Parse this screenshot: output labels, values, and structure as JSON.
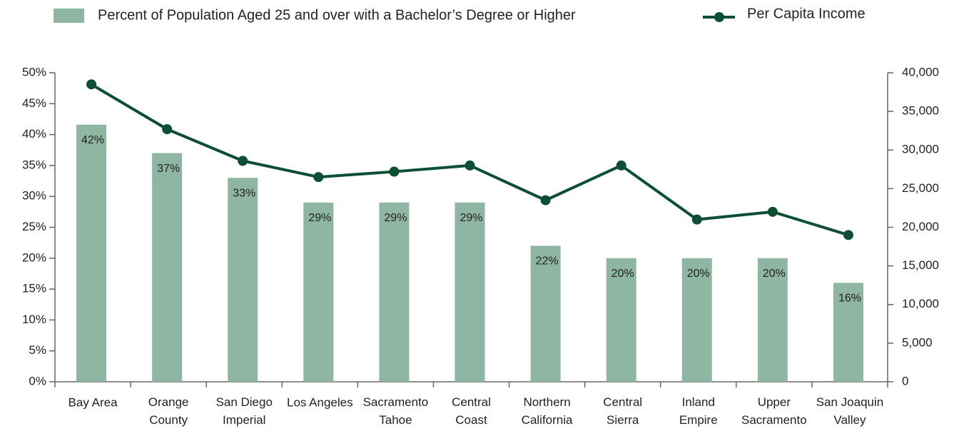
{
  "chart_data": {
    "type": "bar_line",
    "categories": [
      "Bay Area",
      "Orange\nCounty",
      "San Diego\nImperial",
      "Los Angeles",
      "Sacramento\nTahoe",
      "Central\nCoast",
      "Northern\nCalifornia",
      "Central\nSierra",
      "Inland\nEmpire",
      "Upper\nSacramento",
      "San Joaquin\nValley"
    ],
    "series": [
      {
        "name": "Percent of Population Aged 25 and over with a Bachelor’s Degree or Higher",
        "type": "bar",
        "color": "#8fb5a3",
        "values": [
          41.6,
          37,
          33,
          29,
          29,
          29,
          22,
          20,
          20,
          20,
          16
        ],
        "value_labels": [
          "42%",
          "37%",
          "33%",
          "29%",
          "29%",
          "29%",
          "22%",
          "20%",
          "20%",
          "20%",
          "16%"
        ]
      },
      {
        "name": "Per Capita Income",
        "type": "line",
        "axis": "y2",
        "color": "#0d4f35",
        "values": [
          38500,
          32700,
          28600,
          26500,
          27200,
          28000,
          23500,
          28000,
          21000,
          22000,
          19000
        ]
      }
    ],
    "ylim": [
      0,
      50
    ],
    "yticks": [
      {
        "value": 0,
        "label": "0%"
      },
      {
        "value": 5,
        "label": "5%"
      },
      {
        "value": 10,
        "label": "10%"
      },
      {
        "value": 15,
        "label": "15%"
      },
      {
        "value": 20,
        "label": "20%"
      },
      {
        "value": 25,
        "label": "25%"
      },
      {
        "value": 30,
        "label": "30%"
      },
      {
        "value": 35,
        "label": "35%"
      },
      {
        "value": 40,
        "label": "40%"
      },
      {
        "value": 45,
        "label": "45%"
      },
      {
        "value": 50,
        "label": "50%"
      }
    ],
    "y2lim": [
      0,
      40000
    ],
    "y2ticks": [
      0,
      {
        "value": 5000,
        "label": "5,000"
      },
      {
        "value": 10000,
        "label": "10,000"
      },
      {
        "value": 15000,
        "label": "15,000"
      },
      {
        "value": 20000,
        "label": "20,000"
      },
      {
        "value": 25000,
        "label": "25,000"
      },
      {
        "value": 30000,
        "label": "30,000"
      },
      {
        "value": 35000,
        "label": "35,000"
      },
      {
        "value": 40000,
        "label": "40,000"
      }
    ],
    "grid": false,
    "legend": "top"
  }
}
